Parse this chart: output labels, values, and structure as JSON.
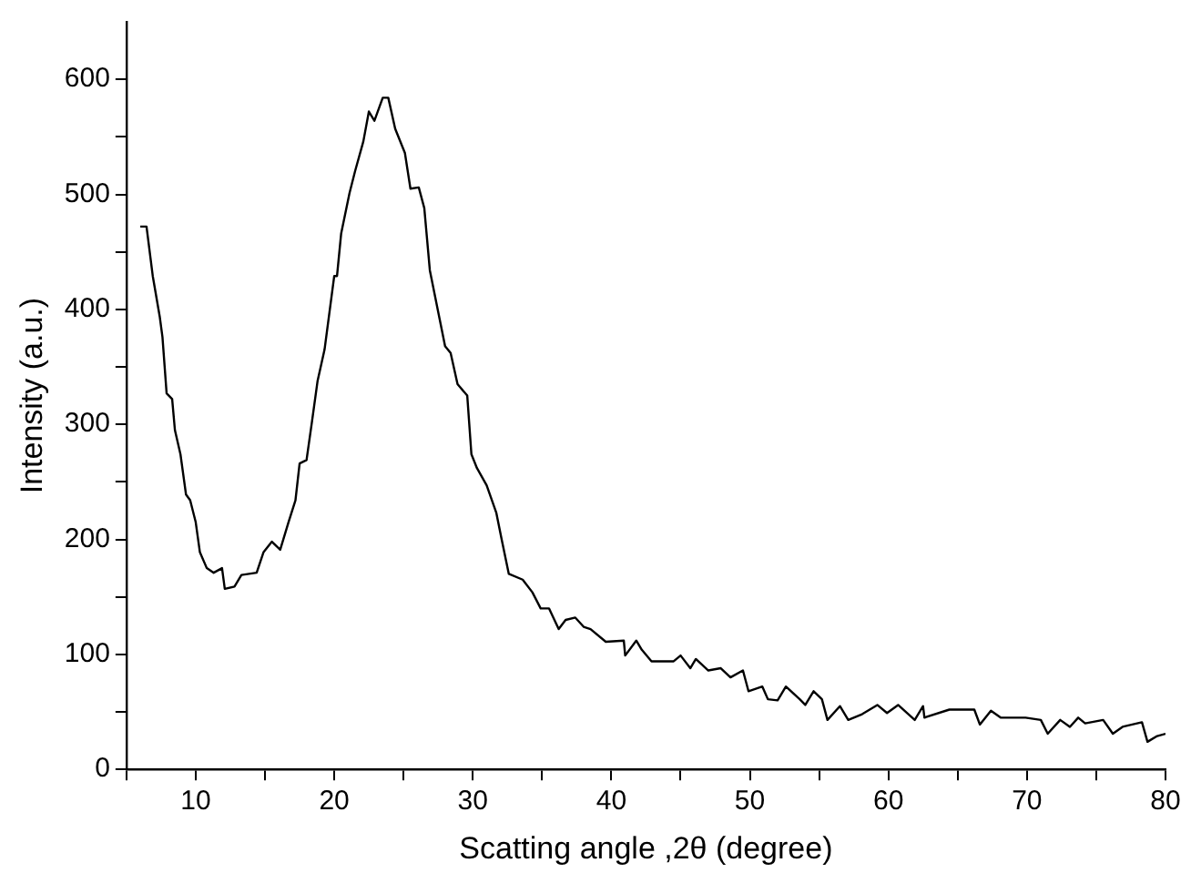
{
  "chart_data": {
    "type": "line",
    "xlabel": "Scatting angle ,2θ (degree)",
    "ylabel": "Intensity (a.u.)",
    "xlim": [
      5,
      80
    ],
    "ylim": [
      0,
      650
    ],
    "xticks": [
      {
        "value": 5,
        "label": null
      },
      10,
      {
        "value": 15,
        "label": null
      },
      20,
      {
        "value": 25,
        "label": null
      },
      30,
      {
        "value": 35,
        "label": null
      },
      40,
      {
        "value": 45,
        "label": null
      },
      50,
      {
        "value": 55,
        "label": null
      },
      60,
      {
        "value": 65,
        "label": null
      },
      70,
      {
        "value": 75,
        "label": null
      },
      80
    ],
    "yticks": [
      0,
      {
        "value": 50,
        "label": null
      },
      100,
      {
        "value": 150,
        "label": null
      },
      200,
      {
        "value": 250,
        "label": null
      },
      300,
      {
        "value": 350,
        "label": null
      },
      400,
      {
        "value": 450,
        "label": null
      },
      500,
      {
        "value": 550,
        "label": null
      },
      600
    ],
    "grid": false,
    "legend": false,
    "marker": "none",
    "line_style": "solid",
    "series": [
      {
        "color": "#000000",
        "x": [
          6.0,
          6.45,
          6.9,
          7.4,
          7.6,
          7.9,
          8.3,
          8.5,
          8.9,
          9.3,
          9.6,
          10.0,
          10.3,
          10.8,
          11.3,
          11.9,
          12.1,
          12.8,
          13.3,
          14.4,
          14.9,
          15.5,
          16.1,
          16.7,
          17.2,
          17.5,
          18.0,
          18.4,
          18.8,
          19.3,
          20.0,
          20.2,
          20.5,
          21.1,
          21.5,
          22.1,
          22.5,
          22.9,
          23.5,
          23.9,
          24.4,
          25.1,
          25.5,
          26.1,
          26.5,
          26.9,
          27.6,
          28.0,
          28.4,
          28.9,
          29.6,
          29.9,
          30.3,
          31.0,
          31.7,
          32.1,
          32.6,
          33.6,
          34.3,
          34.9,
          35.5,
          36.2,
          36.7,
          37.4,
          38.0,
          38.5,
          39.6,
          40.9,
          41.0,
          41.8,
          42.2,
          42.9,
          44.5,
          45.0,
          45.7,
          46.1,
          47.0,
          47.9,
          48.6,
          49.5,
          49.9,
          50.9,
          51.3,
          52.0,
          52.6,
          53.6,
          54.0,
          54.6,
          55.2,
          55.6,
          56.5,
          57.1,
          58.1,
          59.2,
          59.9,
          60.7,
          61.9,
          62.5,
          62.6,
          64.4,
          66.2,
          66.6,
          67.4,
          68.1,
          69.9,
          71.0,
          71.5,
          72.4,
          73.1,
          73.7,
          74.2,
          75.5,
          76.2,
          76.9,
          78.3,
          78.7,
          79.4,
          80.0
        ],
        "values": [
          472,
          472,
          429,
          394,
          376,
          327,
          322,
          295,
          274,
          239,
          234,
          215,
          189,
          175,
          171,
          175,
          157,
          159,
          169,
          171,
          189,
          198,
          191,
          215,
          234,
          266,
          269,
          303,
          338,
          365,
          429,
          429,
          466,
          501,
          520,
          546,
          572,
          564,
          584,
          584,
          557,
          536,
          505,
          506,
          488,
          434,
          392,
          368,
          362,
          335,
          325,
          274,
          262,
          247,
          223,
          199,
          170,
          165,
          154,
          140,
          140,
          122,
          130,
          132,
          124,
          122,
          111,
          112,
          99,
          112,
          104,
          94,
          94,
          99,
          88,
          96,
          86,
          88,
          80,
          86,
          68,
          72,
          61,
          60,
          72,
          61,
          56,
          68,
          61,
          43,
          55,
          43,
          48,
          56,
          49,
          56,
          43,
          55,
          45,
          52,
          52,
          39,
          51,
          45,
          45,
          43,
          31,
          43,
          37,
          45,
          40,
          43,
          31,
          37,
          41,
          24,
          29,
          31
        ]
      }
    ]
  }
}
